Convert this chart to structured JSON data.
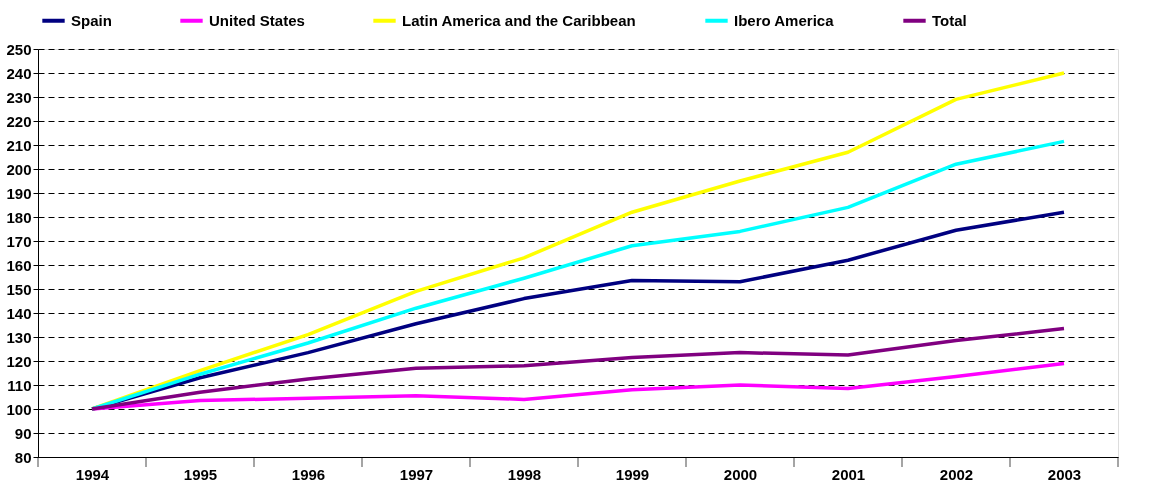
{
  "chart_data": {
    "type": "line",
    "categories": [
      "1994",
      "1995",
      "1996",
      "1997",
      "1998",
      "1999",
      "2000",
      "2001",
      "2002",
      "2003"
    ],
    "series": [
      {
        "name": "Spain",
        "color": "#000080",
        "values": [
          100,
          113,
          123.5,
          135.5,
          146,
          153.5,
          153,
          162,
          174.5,
          182
        ]
      },
      {
        "name": "United States",
        "color": "#ff00ff",
        "values": [
          100,
          103.5,
          104.5,
          105.5,
          104,
          108,
          110,
          108.5,
          113.5,
          119
        ]
      },
      {
        "name": "Latin America and the Caribbean",
        "color": "#ffff00",
        "values": [
          100,
          116,
          131,
          149,
          163,
          182,
          195,
          207,
          229,
          240
        ]
      },
      {
        "name": "Ibero America",
        "color": "#00ffff",
        "values": [
          100,
          114.5,
          127.5,
          142,
          154.5,
          168,
          174,
          184,
          202,
          211.5
        ]
      },
      {
        "name": "Total",
        "color": "#800080",
        "values": [
          100,
          107,
          112.5,
          117,
          118,
          121.5,
          123.5,
          122.5,
          128.5,
          133.5
        ]
      }
    ],
    "ylim": [
      80,
      250
    ],
    "yticks": [
      80,
      90,
      100,
      110,
      120,
      130,
      140,
      150,
      160,
      170,
      180,
      190,
      200,
      210,
      220,
      230,
      240,
      250
    ],
    "grid": "y",
    "legend": "top",
    "marker": "none",
    "line_style": "solid"
  }
}
